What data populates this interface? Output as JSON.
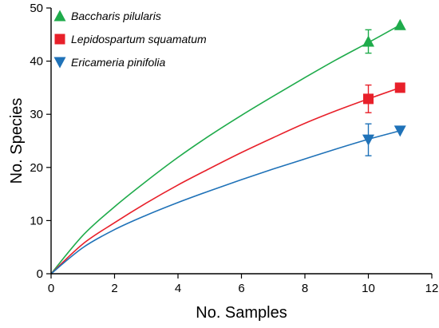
{
  "chart_data": {
    "type": "line",
    "xlabel": "No. Samples",
    "ylabel": "No. Species",
    "xlim": [
      0,
      12
    ],
    "ylim": [
      0,
      50
    ],
    "xticks": [
      "0",
      "2",
      "4",
      "6",
      "8",
      "10",
      "12"
    ],
    "yticks": [
      "0",
      "10",
      "20",
      "30",
      "40",
      "50"
    ],
    "legend_position": "top-left",
    "grid": false,
    "series": [
      {
        "name": "Baccharis pilularis",
        "color": "#1fab4b",
        "marker": "triangle-up",
        "curve_x": [
          0,
          1,
          2,
          3,
          4,
          5,
          6,
          7,
          8,
          9,
          10,
          11
        ],
        "curve_y": [
          0,
          7.2,
          12.6,
          17.4,
          21.9,
          26.0,
          29.8,
          33.4,
          36.9,
          40.3,
          43.5,
          46.8
        ],
        "points": [
          {
            "x": 10,
            "y": 43.7,
            "error": 2.2
          },
          {
            "x": 11,
            "y": 46.8
          }
        ]
      },
      {
        "name": "Lepidospartum squamatum",
        "color": "#e8202a",
        "marker": "square",
        "curve_x": [
          0,
          1,
          2,
          3,
          4,
          5,
          6,
          7,
          8,
          9,
          10,
          11
        ],
        "curve_y": [
          0,
          5.6,
          9.6,
          13.3,
          16.7,
          19.8,
          22.8,
          25.6,
          28.3,
          30.7,
          32.9,
          35.0
        ],
        "points": [
          {
            "x": 10,
            "y": 32.9,
            "error": 2.6
          },
          {
            "x": 11,
            "y": 35.0
          }
        ]
      },
      {
        "name": "Ericameria pinifolia",
        "color": "#1f72b8",
        "marker": "triangle-down",
        "curve_x": [
          0,
          1,
          2,
          3,
          4,
          5,
          6,
          7,
          8,
          9,
          10,
          11
        ],
        "curve_y": [
          0,
          4.9,
          8.3,
          11.0,
          13.4,
          15.6,
          17.7,
          19.7,
          21.6,
          23.5,
          25.3,
          26.9
        ],
        "points": [
          {
            "x": 10,
            "y": 25.2,
            "error": 3.0
          },
          {
            "x": 11,
            "y": 26.9
          }
        ]
      }
    ]
  }
}
